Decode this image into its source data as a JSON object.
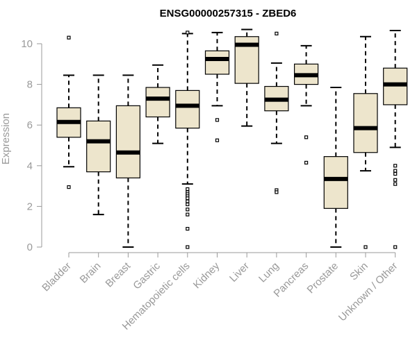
{
  "chart_data": {
    "type": "boxplot",
    "title": "ENSG00000257315 - ZBED6",
    "xlabel": "",
    "ylabel": "Expression",
    "ylim": [
      0,
      10.6
    ],
    "yticks": [
      0,
      2,
      4,
      6,
      8,
      10
    ],
    "ytick_labels": [
      "0",
      "2",
      "4",
      "6",
      "8",
      "10"
    ],
    "colors": {
      "box_fill": "#ede5cc",
      "box_stroke": "#000000",
      "median": "#000000",
      "axis": "#999999",
      "title": "#000000"
    },
    "categories": [
      "Bladder",
      "Brain",
      "Breast",
      "Gastric",
      "Hematopoietic cells",
      "Kidney",
      "Liver",
      "Lung",
      "Pancreas",
      "Prostate",
      "Skin",
      "Unknown / Other"
    ],
    "boxes": [
      {
        "category": "Bladder",
        "whisker_low": 3.95,
        "q1": 5.4,
        "median": 6.15,
        "q3": 6.85,
        "whisker_high": 8.45,
        "outliers": [
          10.3,
          2.95
        ]
      },
      {
        "category": "Brain",
        "whisker_low": 1.6,
        "q1": 3.7,
        "median": 5.2,
        "q3": 6.2,
        "whisker_high": 8.45,
        "outliers": []
      },
      {
        "category": "Breast",
        "whisker_low": 0.0,
        "q1": 3.4,
        "median": 4.65,
        "q3": 6.95,
        "whisker_high": 8.45,
        "outliers": []
      },
      {
        "category": "Gastric",
        "whisker_low": 5.1,
        "q1": 6.4,
        "median": 7.3,
        "q3": 7.85,
        "whisker_high": 8.95,
        "outliers": []
      },
      {
        "category": "Hematopoietic cells",
        "whisker_low": 3.1,
        "q1": 5.85,
        "median": 6.95,
        "q3": 7.7,
        "whisker_high": 10.5,
        "outliers": [
          10.55,
          2.85,
          2.7,
          2.6,
          2.5,
          2.4,
          2.25,
          2.1,
          1.85,
          1.6,
          0.9,
          0.0
        ]
      },
      {
        "category": "Kidney",
        "whisker_low": 6.95,
        "q1": 8.5,
        "median": 9.25,
        "q3": 9.65,
        "whisker_high": 10.55,
        "outliers": [
          6.25,
          5.25
        ]
      },
      {
        "category": "Liver",
        "whisker_low": 5.95,
        "q1": 8.05,
        "median": 9.95,
        "q3": 10.35,
        "whisker_high": 10.7,
        "outliers": []
      },
      {
        "category": "Lung",
        "whisker_low": 5.1,
        "q1": 6.7,
        "median": 7.25,
        "q3": 7.9,
        "whisker_high": 9.05,
        "outliers": [
          10.5,
          2.8,
          2.7
        ]
      },
      {
        "category": "Pancreas",
        "whisker_low": 6.95,
        "q1": 8.0,
        "median": 8.45,
        "q3": 9.0,
        "whisker_high": 9.9,
        "outliers": [
          5.4,
          4.15
        ]
      },
      {
        "category": "Prostate",
        "whisker_low": 0.0,
        "q1": 1.9,
        "median": 3.35,
        "q3": 4.45,
        "whisker_high": 7.85,
        "outliers": []
      },
      {
        "category": "Skin",
        "whisker_low": 3.75,
        "q1": 4.65,
        "median": 5.85,
        "q3": 7.55,
        "whisker_high": 10.35,
        "outliers": [
          0.0
        ]
      },
      {
        "category": "Unknown / Other",
        "whisker_low": 4.9,
        "q1": 7.0,
        "median": 8.0,
        "q3": 8.8,
        "whisker_high": 10.65,
        "outliers": [
          4.0,
          3.75,
          3.6,
          3.3,
          3.1,
          0.0
        ]
      }
    ]
  }
}
